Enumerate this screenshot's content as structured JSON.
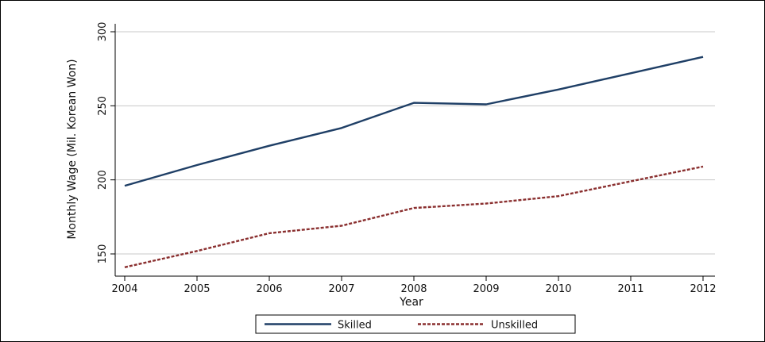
{
  "chart_data": {
    "type": "line",
    "title": "",
    "xlabel": "Year",
    "ylabel": "Monthly Wage (Mil. Korean Won)",
    "x": [
      2004,
      2005,
      2006,
      2007,
      2008,
      2009,
      2010,
      2011,
      2012
    ],
    "xticks": [
      "2004",
      "2005",
      "2006",
      "2007",
      "2008",
      "2009",
      "2010",
      "2011",
      "2012"
    ],
    "yticks": [
      "150",
      "200",
      "250",
      "300"
    ],
    "ytick_values": [
      150,
      200,
      250,
      300
    ],
    "xlim": [
      2004,
      2012
    ],
    "ylim": [
      140,
      305
    ],
    "grid": true,
    "legend_position": "bottom",
    "series": [
      {
        "name": "Skilled",
        "values": [
          196,
          210,
          223,
          235,
          252,
          251,
          261,
          272,
          283
        ],
        "color": "#1f3f66",
        "dash": "solid"
      },
      {
        "name": "Unskilled",
        "values": [
          141,
          152,
          164,
          169,
          181,
          184,
          189,
          199,
          209
        ],
        "color": "#8a2f2f",
        "dash": "dashed"
      }
    ]
  }
}
